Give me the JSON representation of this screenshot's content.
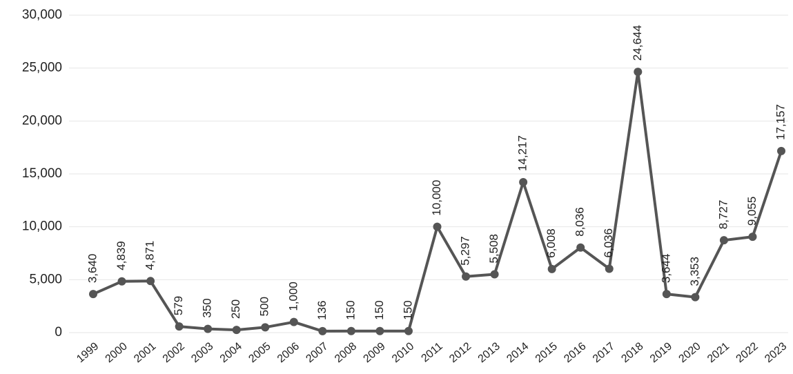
{
  "chart_data": {
    "type": "line",
    "color": "#555555",
    "grid": true,
    "categories": [
      "1999",
      "2000",
      "2001",
      "2002",
      "2003",
      "2004",
      "2005",
      "2006",
      "2007",
      "2008",
      "2009",
      "2010",
      "2011",
      "2012",
      "2013",
      "2014",
      "2015",
      "2016",
      "2017",
      "2018",
      "2019",
      "2020",
      "2021",
      "2022",
      "2023"
    ],
    "values": [
      3640,
      4839,
      4871,
      579,
      350,
      250,
      500,
      1000,
      136,
      150,
      150,
      150,
      10000,
      5297,
      5508,
      14217,
      6008,
      8036,
      6036,
      24644,
      3644,
      3353,
      8727,
      9055,
      17157
    ],
    "value_labels": [
      "3,640",
      "4,839",
      "4,871",
      "579",
      "350",
      "250",
      "500",
      "1,000",
      "136",
      "150",
      "150",
      "150",
      "10,000",
      "5,297",
      "5,508",
      "14,217",
      "6,008",
      "8,036",
      "6,036",
      "24,644",
      "3,644",
      "3,353",
      "8,727",
      "9,055",
      "17,157"
    ],
    "ylim": [
      0,
      30000
    ],
    "yticks": [
      0,
      {
        "value": 5000,
        "label": "5,000"
      },
      {
        "value": 10000,
        "label": "10,000"
      },
      {
        "value": 15000,
        "label": "15,000"
      },
      {
        "value": 20000,
        "label": "20,000"
      },
      {
        "value": 25000,
        "label": "25,000"
      },
      {
        "value": 30000,
        "label": "30,000"
      }
    ]
  }
}
